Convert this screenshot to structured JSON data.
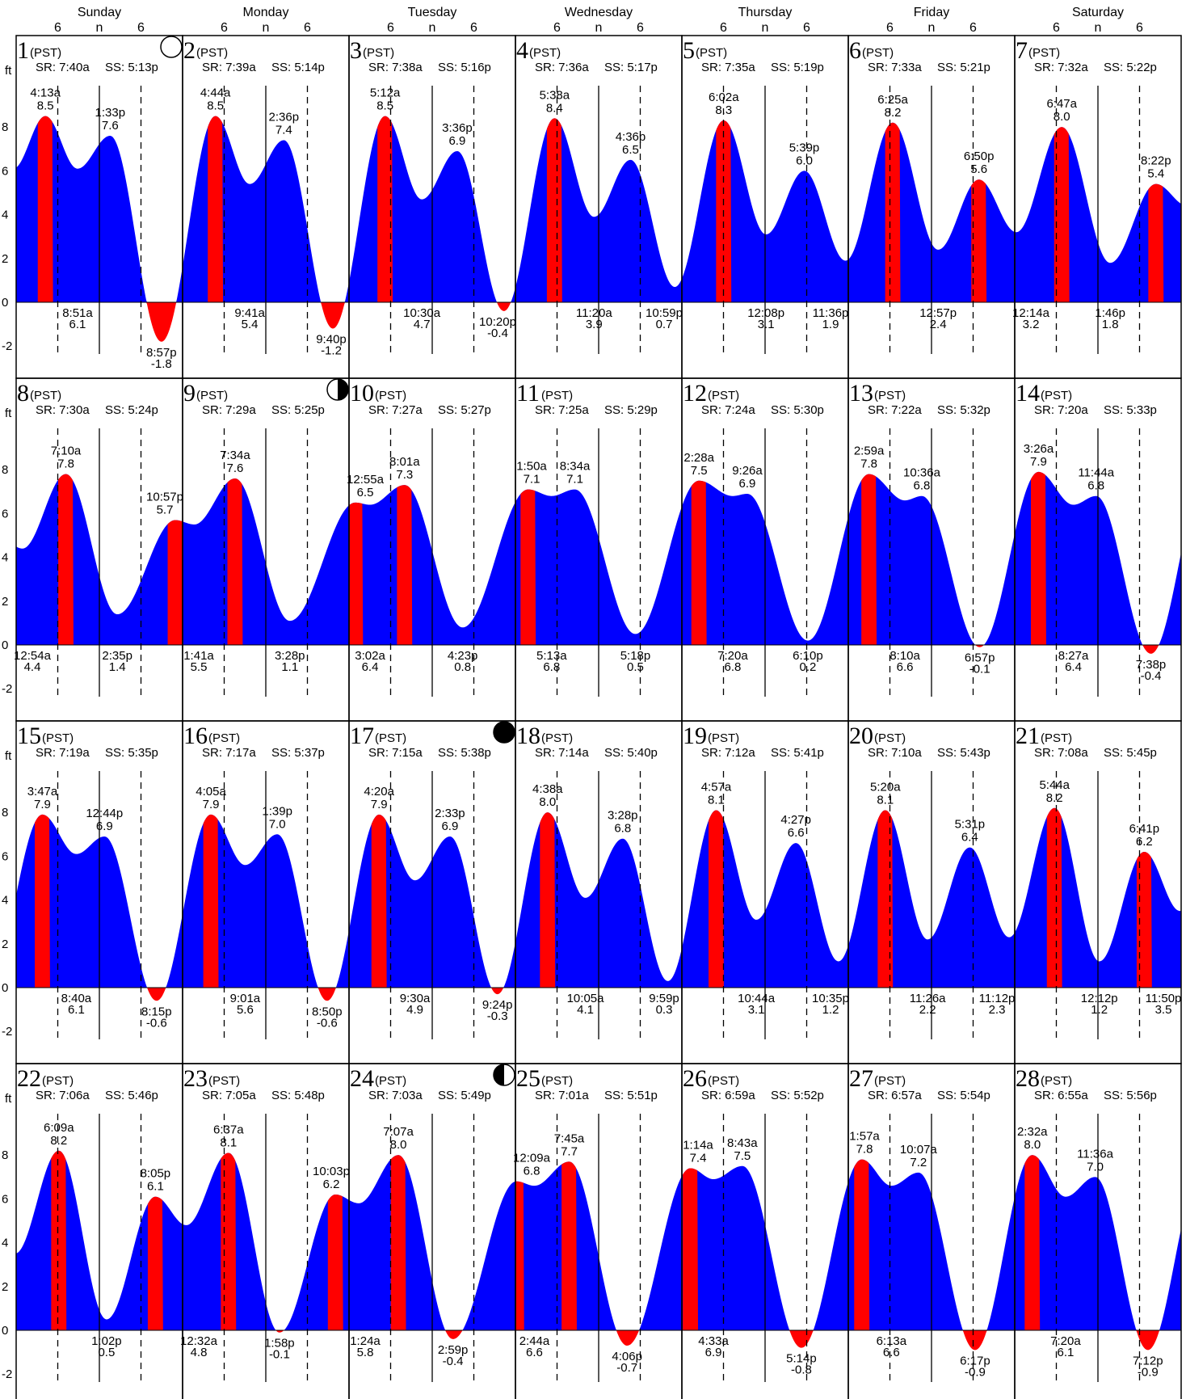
{
  "chart_data": {
    "type": "area",
    "units_label": "ft",
    "weekdays": [
      "Sunday",
      "Monday",
      "Tuesday",
      "Wednesday",
      "Thursday",
      "Friday",
      "Saturday"
    ],
    "hour_ticks": [
      "6",
      "n",
      "6"
    ],
    "y_ticks": [
      8,
      6,
      4,
      2,
      0,
      -2
    ],
    "y_tick_labels": [
      "8",
      "6",
      "4",
      "2",
      "0",
      "-2"
    ],
    "ylim": [
      -3.5,
      11.2
    ],
    "timezone_label": "(PST)",
    "moon_phases": [
      {
        "day": 1,
        "phase": "full"
      },
      {
        "day": 9,
        "phase": "last-quarter"
      },
      {
        "day": 17,
        "phase": "new"
      },
      {
        "day": 24,
        "phase": "first-quarter"
      }
    ],
    "days": [
      {
        "day": "1",
        "sr": "SR: 7:40a",
        "ss": "SS: 5:13p",
        "events": [
          {
            "t": "4:13a",
            "h": "8.5",
            "type": "high"
          },
          {
            "t": "8:51a",
            "h": "6.1",
            "type": "low"
          },
          {
            "t": "1:33p",
            "h": "7.6",
            "type": "high"
          },
          {
            "t": "8:57p",
            "h": "-1.8",
            "type": "low"
          }
        ]
      },
      {
        "day": "2",
        "sr": "SR: 7:39a",
        "ss": "SS: 5:14p",
        "events": [
          {
            "t": "4:44a",
            "h": "8.5",
            "type": "high"
          },
          {
            "t": "9:41a",
            "h": "5.4",
            "type": "low"
          },
          {
            "t": "2:36p",
            "h": "7.4",
            "type": "high"
          },
          {
            "t": "9:40p",
            "h": "-1.2",
            "type": "low"
          }
        ]
      },
      {
        "day": "3",
        "sr": "SR: 7:38a",
        "ss": "SS: 5:16p",
        "events": [
          {
            "t": "5:12a",
            "h": "8.5",
            "type": "high"
          },
          {
            "t": "10:30a",
            "h": "4.7",
            "type": "low"
          },
          {
            "t": "3:36p",
            "h": "6.9",
            "type": "high"
          },
          {
            "t": "10:20p",
            "h": "-0.4",
            "type": "low"
          }
        ]
      },
      {
        "day": "4",
        "sr": "SR: 7:36a",
        "ss": "SS: 5:17p",
        "events": [
          {
            "t": "5:38a",
            "h": "8.4",
            "type": "high"
          },
          {
            "t": "11:20a",
            "h": "3.9",
            "type": "low"
          },
          {
            "t": "4:36p",
            "h": "6.5",
            "type": "high"
          },
          {
            "t": "10:59p",
            "h": "0.7",
            "type": "low"
          }
        ]
      },
      {
        "day": "5",
        "sr": "SR: 7:35a",
        "ss": "SS: 5:19p",
        "events": [
          {
            "t": "6:02a",
            "h": "8.3",
            "type": "high"
          },
          {
            "t": "12:08p",
            "h": "3.1",
            "type": "low"
          },
          {
            "t": "5:39p",
            "h": "6.0",
            "type": "high"
          },
          {
            "t": "11:36p",
            "h": "1.9",
            "type": "low"
          }
        ]
      },
      {
        "day": "6",
        "sr": "SR: 7:33a",
        "ss": "SS: 5:21p",
        "events": [
          {
            "t": "6:25a",
            "h": "8.2",
            "type": "high"
          },
          {
            "t": "12:57p",
            "h": "2.4",
            "type": "low"
          },
          {
            "t": "6:50p",
            "h": "5.6",
            "type": "high"
          }
        ]
      },
      {
        "day": "7",
        "sr": "SR: 7:32a",
        "ss": "SS: 5:22p",
        "events": [
          {
            "t": "12:14a",
            "h": "3.2",
            "type": "low"
          },
          {
            "t": "6:47a",
            "h": "8.0",
            "type": "high"
          },
          {
            "t": "1:46p",
            "h": "1.8",
            "type": "low"
          },
          {
            "t": "8:22p",
            "h": "5.4",
            "type": "high"
          }
        ]
      },
      {
        "day": "8",
        "sr": "SR: 7:30a",
        "ss": "SS: 5:24p",
        "events": [
          {
            "t": "12:54a",
            "h": "4.4",
            "type": "low"
          },
          {
            "t": "7:10a",
            "h": "7.8",
            "type": "high"
          },
          {
            "t": "2:35p",
            "h": "1.4",
            "type": "low"
          },
          {
            "t": "10:57p",
            "h": "5.7",
            "type": "high"
          }
        ]
      },
      {
        "day": "9",
        "sr": "SR: 7:29a",
        "ss": "SS: 5:25p",
        "events": [
          {
            "t": "1:41a",
            "h": "5.5",
            "type": "low"
          },
          {
            "t": "7:34a",
            "h": "7.6",
            "type": "high"
          },
          {
            "t": "3:28p",
            "h": "1.1",
            "type": "low"
          }
        ]
      },
      {
        "day": "10",
        "sr": "SR: 7:27a",
        "ss": "SS: 5:27p",
        "events": [
          {
            "t": "12:55a",
            "h": "6.5",
            "type": "high"
          },
          {
            "t": "3:02a",
            "h": "6.4",
            "type": "low"
          },
          {
            "t": "8:01a",
            "h": "7.3",
            "type": "high"
          },
          {
            "t": "4:23p",
            "h": "0.8",
            "type": "low"
          }
        ]
      },
      {
        "day": "11",
        "sr": "SR: 7:25a",
        "ss": "SS: 5:29p",
        "events": [
          {
            "t": "1:50a",
            "h": "7.1",
            "type": "high"
          },
          {
            "t": "5:13a",
            "h": "6.8",
            "type": "low"
          },
          {
            "t": "8:34a",
            "h": "7.1",
            "type": "high"
          },
          {
            "t": "5:18p",
            "h": "0.5",
            "type": "low"
          }
        ]
      },
      {
        "day": "12",
        "sr": "SR: 7:24a",
        "ss": "SS: 5:30p",
        "events": [
          {
            "t": "2:28a",
            "h": "7.5",
            "type": "high"
          },
          {
            "t": "7:20a",
            "h": "6.8",
            "type": "low"
          },
          {
            "t": "9:26a",
            "h": "6.9",
            "type": "high"
          },
          {
            "t": "6:10p",
            "h": "0.2",
            "type": "low"
          }
        ]
      },
      {
        "day": "13",
        "sr": "SR: 7:22a",
        "ss": "SS: 5:32p",
        "events": [
          {
            "t": "2:59a",
            "h": "7.8",
            "type": "high"
          },
          {
            "t": "8:10a",
            "h": "6.6",
            "type": "low"
          },
          {
            "t": "10:36a",
            "h": "6.8",
            "type": "high"
          },
          {
            "t": "6:57p",
            "h": "-0.1",
            "type": "low"
          }
        ]
      },
      {
        "day": "14",
        "sr": "SR: 7:20a",
        "ss": "SS: 5:33p",
        "events": [
          {
            "t": "3:26a",
            "h": "7.9",
            "type": "high"
          },
          {
            "t": "8:27a",
            "h": "6.4",
            "type": "low"
          },
          {
            "t": "11:44a",
            "h": "6.8",
            "type": "high"
          },
          {
            "t": "7:38p",
            "h": "-0.4",
            "type": "low"
          }
        ]
      },
      {
        "day": "15",
        "sr": "SR: 7:19a",
        "ss": "SS: 5:35p",
        "events": [
          {
            "t": "3:47a",
            "h": "7.9",
            "type": "high"
          },
          {
            "t": "8:40a",
            "h": "6.1",
            "type": "low"
          },
          {
            "t": "12:44p",
            "h": "6.9",
            "type": "high"
          },
          {
            "t": "8:15p",
            "h": "-0.6",
            "type": "low"
          }
        ]
      },
      {
        "day": "16",
        "sr": "SR: 7:17a",
        "ss": "SS: 5:37p",
        "events": [
          {
            "t": "4:05a",
            "h": "7.9",
            "type": "high"
          },
          {
            "t": "9:01a",
            "h": "5.6",
            "type": "low"
          },
          {
            "t": "1:39p",
            "h": "7.0",
            "type": "high"
          },
          {
            "t": "8:50p",
            "h": "-0.6",
            "type": "low"
          }
        ]
      },
      {
        "day": "17",
        "sr": "SR: 7:15a",
        "ss": "SS: 5:38p",
        "events": [
          {
            "t": "4:20a",
            "h": "7.9",
            "type": "high"
          },
          {
            "t": "9:30a",
            "h": "4.9",
            "type": "low"
          },
          {
            "t": "2:33p",
            "h": "6.9",
            "type": "high"
          },
          {
            "t": "9:24p",
            "h": "-0.3",
            "type": "low"
          }
        ]
      },
      {
        "day": "18",
        "sr": "SR: 7:14a",
        "ss": "SS: 5:40p",
        "events": [
          {
            "t": "4:38a",
            "h": "8.0",
            "type": "high"
          },
          {
            "t": "10:05a",
            "h": "4.1",
            "type": "low"
          },
          {
            "t": "3:28p",
            "h": "6.8",
            "type": "high"
          },
          {
            "t": "9:59p",
            "h": "0.3",
            "type": "low"
          }
        ]
      },
      {
        "day": "19",
        "sr": "SR: 7:12a",
        "ss": "SS: 5:41p",
        "events": [
          {
            "t": "4:57a",
            "h": "8.1",
            "type": "high"
          },
          {
            "t": "10:44a",
            "h": "3.1",
            "type": "low"
          },
          {
            "t": "4:27p",
            "h": "6.6",
            "type": "high"
          },
          {
            "t": "10:35p",
            "h": "1.2",
            "type": "low"
          }
        ]
      },
      {
        "day": "20",
        "sr": "SR: 7:10a",
        "ss": "SS: 5:43p",
        "events": [
          {
            "t": "5:20a",
            "h": "8.1",
            "type": "high"
          },
          {
            "t": "11:26a",
            "h": "2.2",
            "type": "low"
          },
          {
            "t": "5:31p",
            "h": "6.4",
            "type": "high"
          },
          {
            "t": "11:12p",
            "h": "2.3",
            "type": "low"
          }
        ]
      },
      {
        "day": "21",
        "sr": "SR: 7:08a",
        "ss": "SS: 5:45p",
        "events": [
          {
            "t": "5:44a",
            "h": "8.2",
            "type": "high"
          },
          {
            "t": "12:12p",
            "h": "1.2",
            "type": "low"
          },
          {
            "t": "6:41p",
            "h": "6.2",
            "type": "high"
          },
          {
            "t": "11:50p",
            "h": "3.5",
            "type": "low"
          }
        ]
      },
      {
        "day": "22",
        "sr": "SR: 7:06a",
        "ss": "SS: 5:46p",
        "events": [
          {
            "t": "6:09a",
            "h": "8.2",
            "type": "high"
          },
          {
            "t": "1:02p",
            "h": "0.5",
            "type": "low"
          },
          {
            "t": "8:05p",
            "h": "6.1",
            "type": "high"
          }
        ]
      },
      {
        "day": "23",
        "sr": "SR: 7:05a",
        "ss": "SS: 5:48p",
        "events": [
          {
            "t": "12:32a",
            "h": "4.8",
            "type": "low"
          },
          {
            "t": "6:37a",
            "h": "8.1",
            "type": "high"
          },
          {
            "t": "1:58p",
            "h": "-0.1",
            "type": "low"
          },
          {
            "t": "10:03p",
            "h": "6.2",
            "type": "high"
          }
        ]
      },
      {
        "day": "24",
        "sr": "SR: 7:03a",
        "ss": "SS: 5:49p",
        "events": [
          {
            "t": "1:24a",
            "h": "5.8",
            "type": "low"
          },
          {
            "t": "7:07a",
            "h": "8.0",
            "type": "high"
          },
          {
            "t": "2:59p",
            "h": "-0.4",
            "type": "low"
          }
        ]
      },
      {
        "day": "25",
        "sr": "SR: 7:01a",
        "ss": "SS: 5:51p",
        "events": [
          {
            "t": "12:09a",
            "h": "6.8",
            "type": "high"
          },
          {
            "t": "2:44a",
            "h": "6.6",
            "type": "low"
          },
          {
            "t": "7:45a",
            "h": "7.7",
            "type": "high"
          },
          {
            "t": "4:06p",
            "h": "-0.7",
            "type": "low"
          }
        ]
      },
      {
        "day": "26",
        "sr": "SR: 6:59a",
        "ss": "SS: 5:52p",
        "events": [
          {
            "t": "1:14a",
            "h": "7.4",
            "type": "high"
          },
          {
            "t": "4:33a",
            "h": "6.9",
            "type": "low"
          },
          {
            "t": "8:43a",
            "h": "7.5",
            "type": "high"
          },
          {
            "t": "5:14p",
            "h": "-0.8",
            "type": "low"
          }
        ]
      },
      {
        "day": "27",
        "sr": "SR: 6:57a",
        "ss": "SS: 5:54p",
        "events": [
          {
            "t": "1:57a",
            "h": "7.8",
            "type": "high"
          },
          {
            "t": "6:13a",
            "h": "6.6",
            "type": "low"
          },
          {
            "t": "10:07a",
            "h": "7.2",
            "type": "high"
          },
          {
            "t": "6:17p",
            "h": "-0.9",
            "type": "low"
          }
        ]
      },
      {
        "day": "28",
        "sr": "SR: 6:55a",
        "ss": "SS: 5:56p",
        "events": [
          {
            "t": "2:32a",
            "h": "8.0",
            "type": "high"
          },
          {
            "t": "7:20a",
            "h": "6.1",
            "type": "low"
          },
          {
            "t": "11:36a",
            "h": "7.0",
            "type": "high"
          },
          {
            "t": "7:12p",
            "h": "-0.9",
            "type": "low"
          }
        ]
      }
    ]
  }
}
